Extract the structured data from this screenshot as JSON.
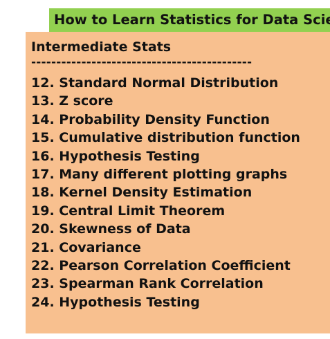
{
  "title": "How to Learn Statistics for Data Science",
  "section": {
    "heading": "Intermediate Stats",
    "divider": "--------------------------------------------",
    "items": [
      "12. Standard Normal Distribution",
      "13. Z score",
      "14. Probability Density Function",
      "15. Cumulative distribution function",
      "16. Hypothesis Testing",
      "17. Many different plotting graphs",
      "18. Kernel Density Estimation",
      "19. Central Limit Theorem",
      "20. Skewness of Data",
      "21. Covariance",
      "22. Pearson Correlation Coefficient",
      "23. Spearman Rank Correlation",
      "24. Hypothesis Testing"
    ]
  },
  "colors": {
    "title_background": "#92d050",
    "card_background": "#f8c08f"
  }
}
